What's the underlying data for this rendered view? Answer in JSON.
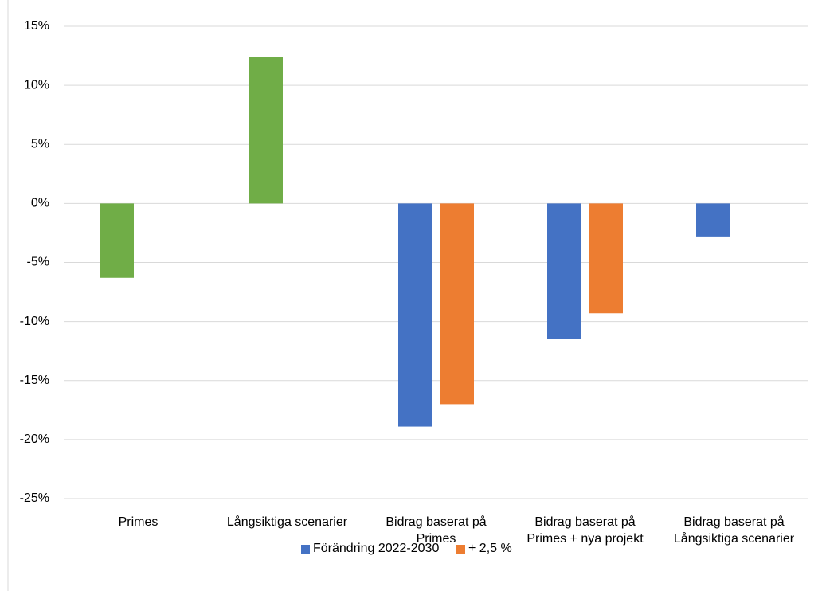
{
  "chart_data": {
    "type": "bar",
    "categories": [
      "Primes",
      "Långsiktiga scenarier",
      "Bidrag baserat på Primes",
      "Bidrag baserat på Primes + nya projekt",
      "Bidrag baserat på Långsiktiga scenarier"
    ],
    "series": [
      {
        "name": "Förändring 2022-2030",
        "color": "#4472c4",
        "point_colors": [
          "#70ad47",
          "#70ad47",
          "#4472c4",
          "#4472c4",
          "#4472c4"
        ],
        "values": [
          -6.3,
          12.4,
          -18.9,
          -11.5,
          -2.8
        ]
      },
      {
        "name": "+ 2,5 %",
        "color": "#ed7d31",
        "values": [
          null,
          null,
          -17,
          -9.3,
          null
        ]
      }
    ],
    "ylim": [
      -25,
      15
    ],
    "yticks": [
      {
        "value": -25,
        "label": "-25%"
      },
      {
        "value": -20,
        "label": "-20%"
      },
      {
        "value": -15,
        "label": "-15%"
      },
      {
        "value": -10,
        "label": "-10%"
      },
      {
        "value": -5,
        "label": "-5%"
      },
      {
        "value": 0,
        "label": "0%"
      },
      {
        "value": 5,
        "label": "5%"
      },
      {
        "value": 10,
        "label": "10%"
      },
      {
        "value": 15,
        "label": "15%"
      }
    ],
    "grid": true,
    "legend": "bottom"
  }
}
